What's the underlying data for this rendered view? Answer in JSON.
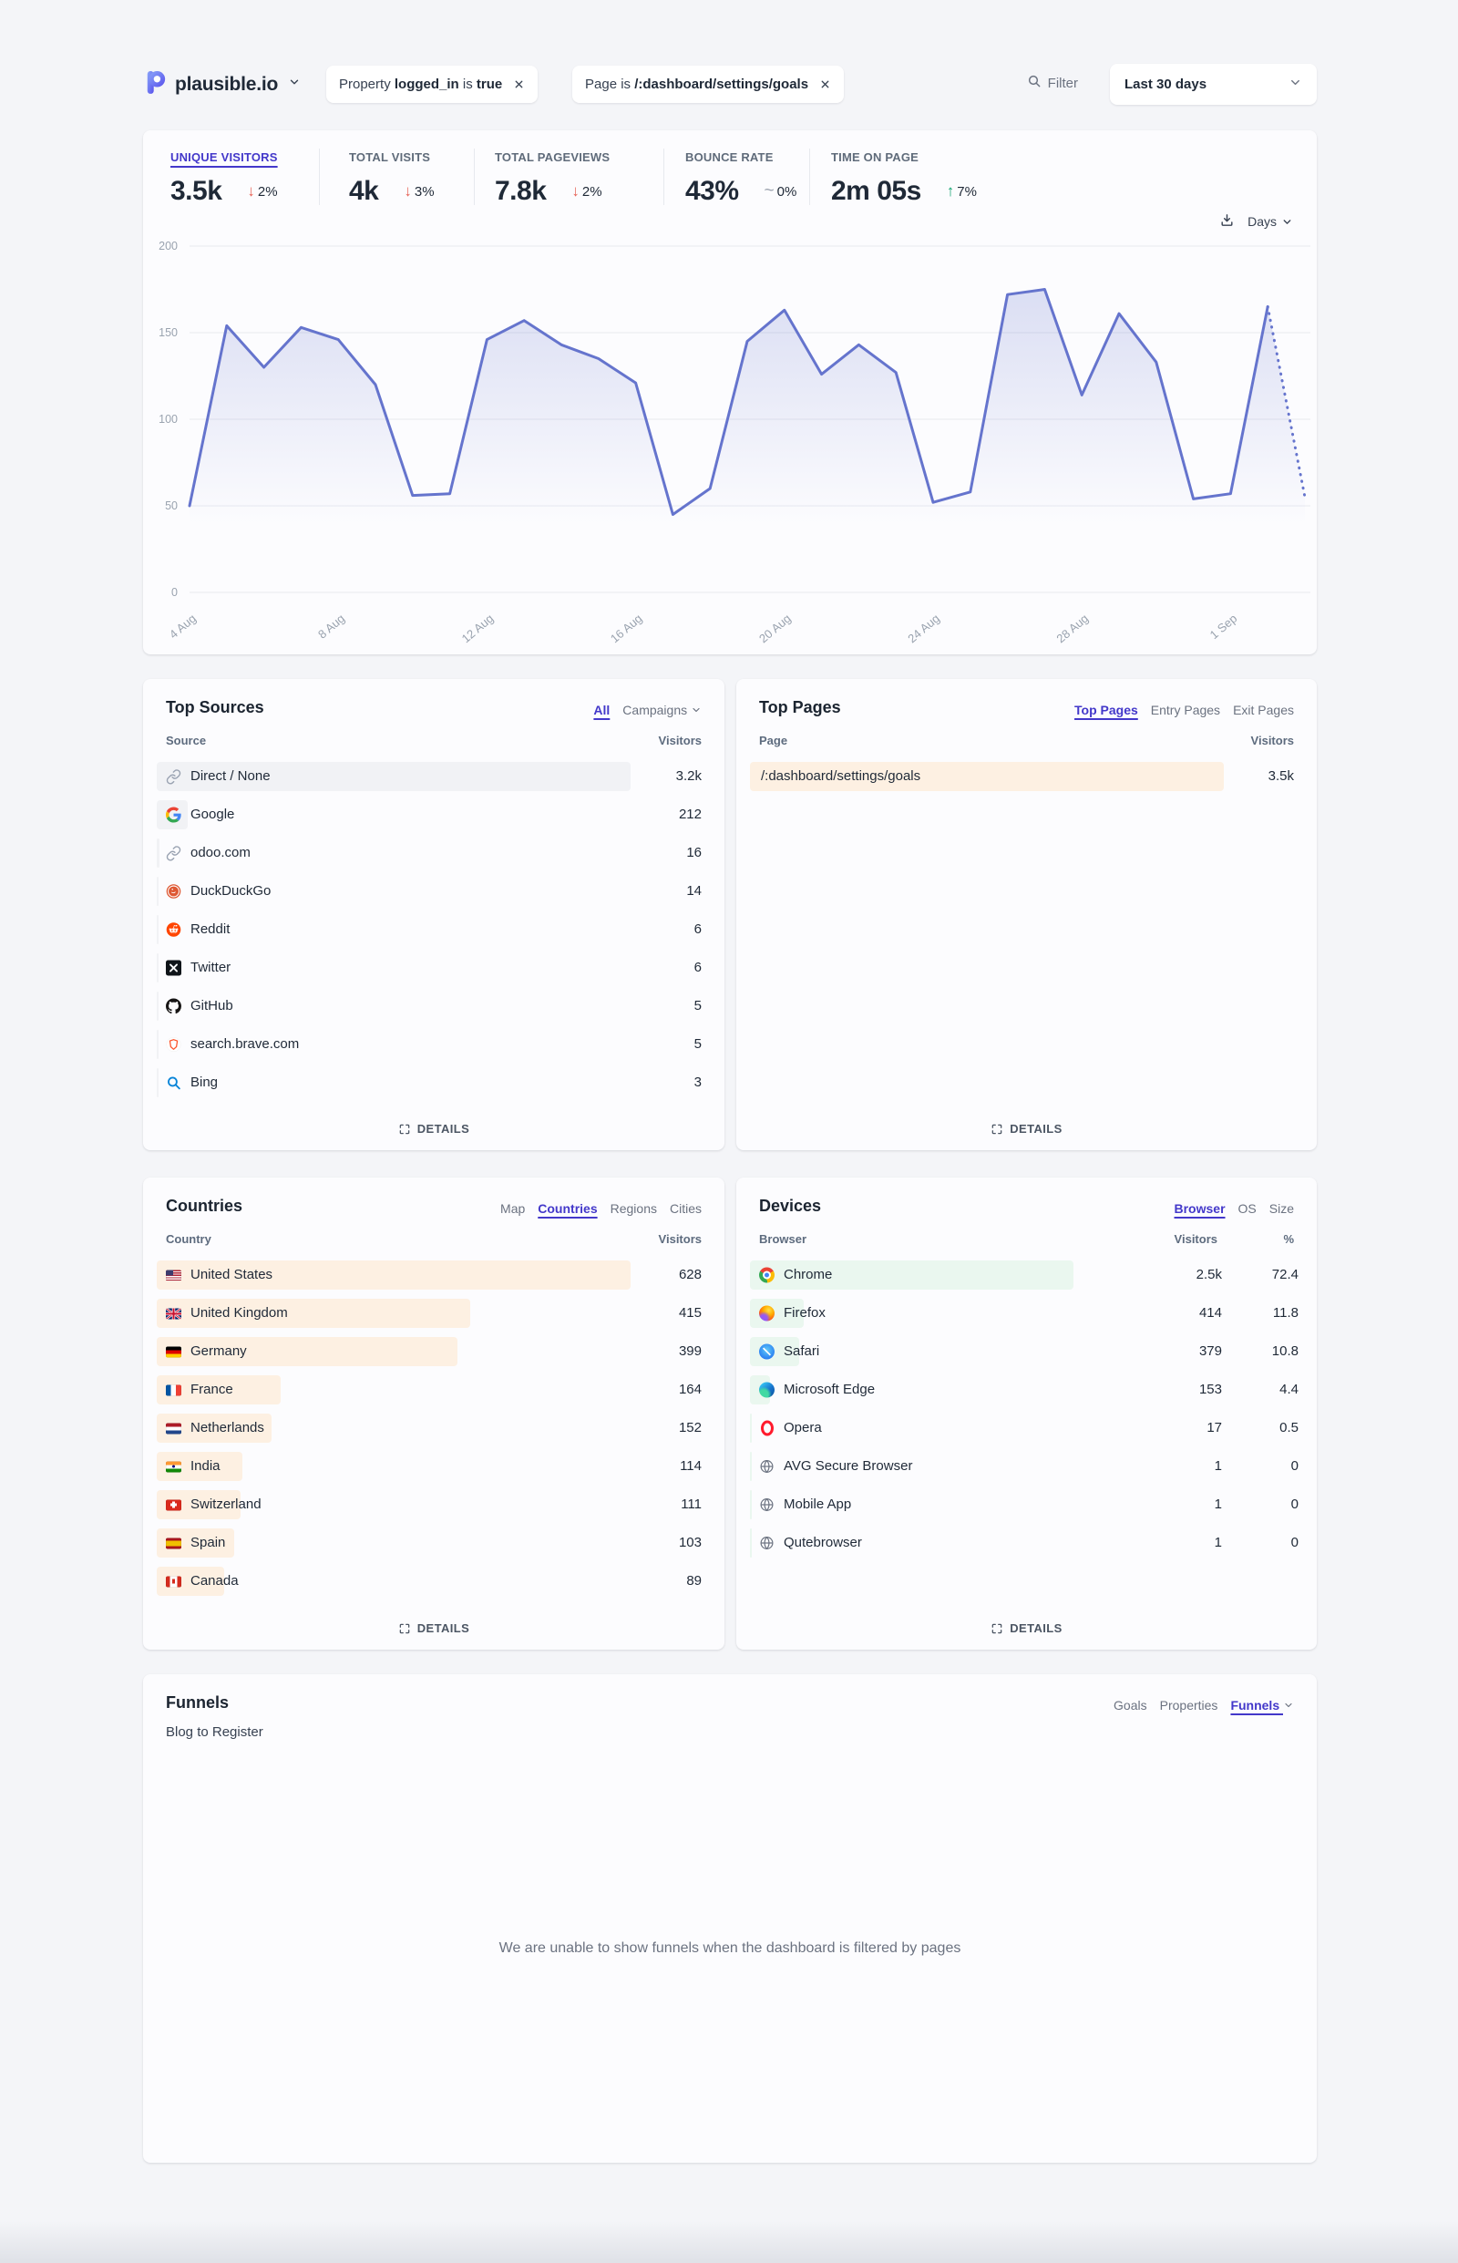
{
  "brand": {
    "name": "plausible.io"
  },
  "header": {
    "filter_pills": [
      {
        "segments": [
          [
            "Property ",
            false
          ],
          [
            "logged_in",
            true
          ],
          [
            " is ",
            false
          ],
          [
            "true",
            true
          ]
        ]
      },
      {
        "segments": [
          [
            "Page is ",
            false
          ],
          [
            "/:dashboard/settings/goals",
            true
          ]
        ]
      }
    ],
    "filter_label": "Filter",
    "date_range": "Last 30 days"
  },
  "stats": [
    {
      "label": "UNIQUE VISITORS",
      "value": "3.5k",
      "delta": "2%",
      "dir": "down",
      "active": true
    },
    {
      "label": "TOTAL VISITS",
      "value": "4k",
      "delta": "3%",
      "dir": "down"
    },
    {
      "label": "TOTAL PAGEVIEWS",
      "value": "7.8k",
      "delta": "2%",
      "dir": "down"
    },
    {
      "label": "BOUNCE RATE",
      "value": "43%",
      "delta": "0%",
      "dir": "flat"
    },
    {
      "label": "TIME ON PAGE",
      "value": "2m 05s",
      "delta": "7%",
      "dir": "up"
    }
  ],
  "chart_controls": {
    "interval": "Days"
  },
  "chart_data": {
    "type": "area",
    "title": "Unique visitors last 30 days",
    "x_tick_labels": [
      "4 Aug",
      "8 Aug",
      "12 Aug",
      "16 Aug",
      "20 Aug",
      "24 Aug",
      "28 Aug",
      "1 Sep"
    ],
    "tick_indices": [
      0,
      4,
      8,
      12,
      16,
      20,
      24,
      28
    ],
    "values": [
      50,
      154,
      130,
      153,
      146,
      120,
      56,
      57,
      146,
      157,
      143,
      135,
      121,
      45,
      60,
      145,
      163,
      126,
      143,
      127,
      52,
      58,
      172,
      175,
      114,
      161,
      133,
      54,
      57,
      165,
      55
    ],
    "dotted_from_index": 29,
    "ylim": [
      0,
      200
    ],
    "yticks": [
      0,
      50,
      100,
      150,
      200
    ],
    "line_color": "#6574cd"
  },
  "labels": {
    "details": "DETAILS"
  },
  "top_sources": {
    "title": "Top Sources",
    "tabs": [
      {
        "label": "All",
        "active": true
      },
      {
        "label": "Campaigns",
        "chevron": true
      }
    ],
    "key_label": "Source",
    "value_label": "Visitors",
    "bar_color": "gray",
    "bar_area": 520,
    "rows": [
      {
        "name": "Direct / None",
        "icon": "link",
        "value": "3.2k",
        "raw": 3200
      },
      {
        "name": "Google",
        "icon": "google",
        "value": "212",
        "raw": 212
      },
      {
        "name": "odoo.com",
        "icon": "link",
        "value": "16",
        "raw": 16
      },
      {
        "name": "DuckDuckGo",
        "icon": "duckduckgo",
        "value": "14",
        "raw": 14
      },
      {
        "name": "Reddit",
        "icon": "reddit",
        "value": "6",
        "raw": 6
      },
      {
        "name": "Twitter",
        "icon": "twitter",
        "value": "6",
        "raw": 6
      },
      {
        "name": "GitHub",
        "icon": "github",
        "value": "5",
        "raw": 5
      },
      {
        "name": "search.brave.com",
        "icon": "brave",
        "value": "5",
        "raw": 5
      },
      {
        "name": "Bing",
        "icon": "bing",
        "value": "3",
        "raw": 3
      }
    ]
  },
  "top_pages": {
    "title": "Top Pages",
    "tabs": [
      {
        "label": "Top Pages",
        "active": true
      },
      {
        "label": "Entry Pages"
      },
      {
        "label": "Exit Pages"
      }
    ],
    "key_label": "Page",
    "value_label": "Visitors",
    "bar_color": "orange",
    "bar_area": 520,
    "rows": [
      {
        "name": "/:dashboard/settings/goals",
        "icon": null,
        "value": "3.5k",
        "raw": 3500
      }
    ]
  },
  "countries": {
    "title": "Countries",
    "tabs": [
      {
        "label": "Map"
      },
      {
        "label": "Countries",
        "active": true
      },
      {
        "label": "Regions"
      },
      {
        "label": "Cities"
      }
    ],
    "key_label": "Country",
    "value_label": "Visitors",
    "bar_color": "orange",
    "bar_area": 520,
    "rows": [
      {
        "name": "United States",
        "icon": "flag-us",
        "value": "628",
        "raw": 628
      },
      {
        "name": "United Kingdom",
        "icon": "flag-gb",
        "value": "415",
        "raw": 415
      },
      {
        "name": "Germany",
        "icon": "flag-de",
        "value": "399",
        "raw": 399
      },
      {
        "name": "France",
        "icon": "flag-fr",
        "value": "164",
        "raw": 164
      },
      {
        "name": "Netherlands",
        "icon": "flag-nl",
        "value": "152",
        "raw": 152
      },
      {
        "name": "India",
        "icon": "flag-in",
        "value": "114",
        "raw": 114
      },
      {
        "name": "Switzerland",
        "icon": "flag-ch",
        "value": "111",
        "raw": 111
      },
      {
        "name": "Spain",
        "icon": "flag-es",
        "value": "103",
        "raw": 103
      },
      {
        "name": "Canada",
        "icon": "flag-ca",
        "value": "89",
        "raw": 89
      }
    ]
  },
  "devices": {
    "title": "Devices",
    "tabs": [
      {
        "label": "Browser",
        "active": true
      },
      {
        "label": "OS"
      },
      {
        "label": "Size"
      }
    ],
    "key_label": "Browser",
    "value_label": "Visitors",
    "pct_label": "%",
    "bar_color": "green",
    "bar_area": 355,
    "rows": [
      {
        "name": "Chrome",
        "icon": "chrome",
        "value": "2.5k",
        "raw": 2500,
        "pct": "72.4"
      },
      {
        "name": "Firefox",
        "icon": "firefox",
        "value": "414",
        "raw": 414,
        "pct": "11.8"
      },
      {
        "name": "Safari",
        "icon": "safari",
        "value": "379",
        "raw": 379,
        "pct": "10.8"
      },
      {
        "name": "Microsoft Edge",
        "icon": "edge",
        "value": "153",
        "raw": 153,
        "pct": "4.4"
      },
      {
        "name": "Opera",
        "icon": "opera",
        "value": "17",
        "raw": 17,
        "pct": "0.5"
      },
      {
        "name": "AVG Secure Browser",
        "icon": "globe",
        "value": "1",
        "raw": 1,
        "pct": "0"
      },
      {
        "name": "Mobile App",
        "icon": "globe",
        "value": "1",
        "raw": 1,
        "pct": "0"
      },
      {
        "name": "Qutebrowser",
        "icon": "globe",
        "value": "1",
        "raw": 1,
        "pct": "0"
      }
    ]
  },
  "funnels": {
    "title": "Funnels",
    "tabs": [
      {
        "label": "Goals"
      },
      {
        "label": "Properties"
      },
      {
        "label": "Funnels",
        "active": true,
        "chevron": true
      }
    ],
    "funnel_name": "Blog to Register",
    "message": "We are unable to show funnels when the dashboard is filtered by pages"
  }
}
